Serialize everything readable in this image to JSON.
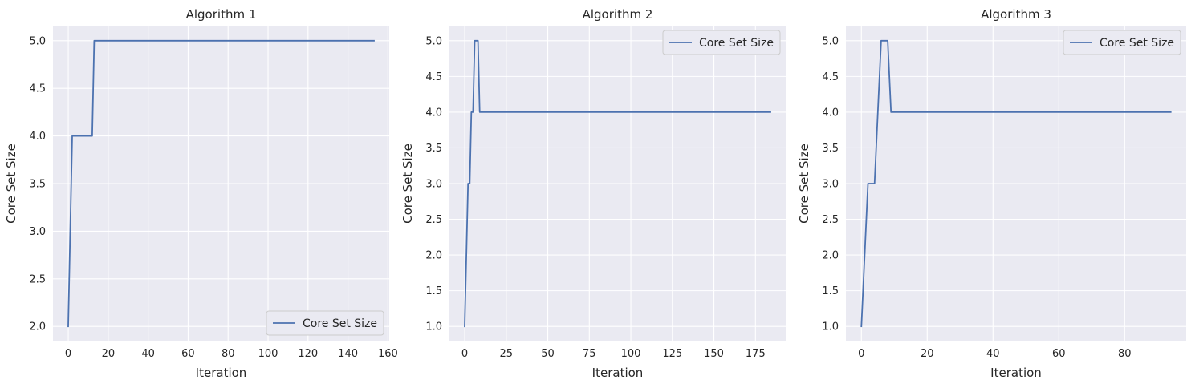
{
  "chart_data": [
    {
      "type": "line",
      "title": "Algorithm 1",
      "xlabel": "Iteration",
      "ylabel": "Core Set Size",
      "xlim": [
        -7.65,
        160.65
      ],
      "ylim": [
        1.85,
        5.15
      ],
      "xticks": [
        0,
        20,
        40,
        60,
        80,
        100,
        120,
        140,
        160
      ],
      "yticks": [
        2.0,
        2.5,
        3.0,
        3.5,
        4.0,
        4.5,
        5.0
      ],
      "grid": true,
      "legend_position": "lower-right",
      "series": [
        {
          "name": "Core Set Size",
          "color": "#4c72b0",
          "x": [
            0,
            2,
            12,
            13,
            153
          ],
          "y": [
            2,
            4,
            4,
            5,
            5
          ]
        }
      ]
    },
    {
      "type": "line",
      "title": "Algorithm 2",
      "xlabel": "Iteration",
      "ylabel": "Core Set Size",
      "xlim": [
        -9.2,
        193.2
      ],
      "ylim": [
        0.8,
        5.2
      ],
      "xticks": [
        0,
        25,
        50,
        75,
        100,
        125,
        150,
        175
      ],
      "yticks": [
        1.0,
        1.5,
        2.0,
        2.5,
        3.0,
        3.5,
        4.0,
        4.5,
        5.0
      ],
      "grid": true,
      "legend_position": "upper-right",
      "series": [
        {
          "name": "Core Set Size",
          "color": "#4c72b0",
          "x": [
            0,
            2,
            3,
            4,
            5,
            6,
            7,
            8,
            9,
            184
          ],
          "y": [
            1,
            3,
            3,
            4,
            4,
            5,
            5,
            5,
            4,
            4
          ]
        }
      ]
    },
    {
      "type": "line",
      "title": "Algorithm 3",
      "xlabel": "Iteration",
      "ylabel": "Core Set Size",
      "xlim": [
        -4.7,
        98.7
      ],
      "ylim": [
        0.8,
        5.2
      ],
      "xticks": [
        0,
        20,
        40,
        60,
        80
      ],
      "yticks": [
        1.0,
        1.5,
        2.0,
        2.5,
        3.0,
        3.5,
        4.0,
        4.5,
        5.0
      ],
      "grid": true,
      "legend_position": "upper-right",
      "series": [
        {
          "name": "Core Set Size",
          "color": "#4c72b0",
          "x": [
            0,
            2,
            3,
            4,
            6,
            7,
            8,
            9,
            94
          ],
          "y": [
            1,
            3,
            3,
            3,
            5,
            5,
            5,
            4,
            4
          ]
        }
      ]
    }
  ]
}
